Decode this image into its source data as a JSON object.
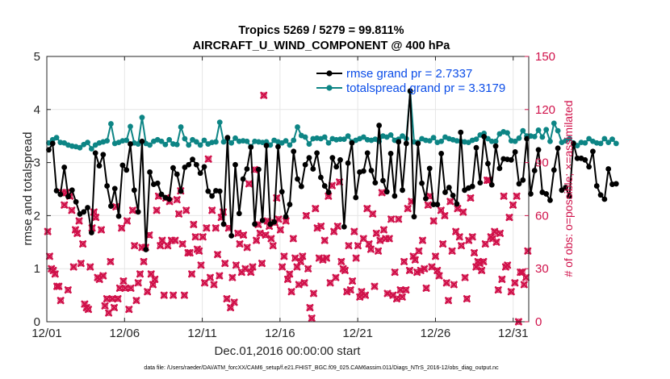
{
  "chart_data": {
    "type": "line",
    "title_line1": "Tropics 5269 / 5279 = 99.811%",
    "title_line2": "AIRCRAFT_U_WIND_COMPONENT @ 400 hPa",
    "xlabel": "Dec.01,2016 00:00:00 start",
    "ylabel_left": "rmse and totalspread",
    "ylabel_right": "# of obs: o=possible; ×=assimilated",
    "xlim": [
      0,
      31
    ],
    "ylim_left": [
      0,
      5
    ],
    "ylim_right": [
      0,
      150
    ],
    "x_ticks": [
      {
        "value": 0,
        "label": "12/01"
      },
      {
        "value": 5,
        "label": "12/06"
      },
      {
        "value": 10,
        "label": "12/11"
      },
      {
        "value": 15,
        "label": "12/16"
      },
      {
        "value": 20,
        "label": "12/21"
      },
      {
        "value": 25,
        "label": "12/26"
      },
      {
        "value": 30,
        "label": "12/31"
      }
    ],
    "y_ticks_left": [
      "0",
      "1",
      "2",
      "3",
      "4",
      "5"
    ],
    "y_ticks_right": [
      "0",
      "30",
      "60",
      "90",
      "120",
      "150"
    ],
    "legend": [
      {
        "name": "rmse grand pr = 2.7337",
        "color": "#000000"
      },
      {
        "name": "totalspread grand pr = 3.3179",
        "color": "#0d8585"
      }
    ],
    "footnote": "data file: /Users/raeder/DAI/ATM_forcXX/CAM6_setup/f.e21.FHIST_BGC.f09_025.CAM6assim.011/Diags_NTrS_2016-12/obs_diag_output.nc",
    "time_step_days": 0.25,
    "series": [
      {
        "name": "rmse",
        "color": "#000000",
        "axis": "left",
        "values": [
          3.24,
          3.36,
          2.47,
          2.4,
          2.91,
          2.36,
          2.48,
          2.26,
          2.03,
          2.07,
          2.15,
          1.68,
          3.18,
          2.94,
          3.15,
          2.56,
          2.18,
          2.51,
          1.99,
          2.95,
          2.86,
          3.35,
          2.48,
          2.07,
          3.4,
          1.36,
          2.82,
          2.59,
          2.61,
          2.4,
          2.34,
          2.31,
          2.9,
          2.78,
          2.46,
          2.91,
          2.96,
          3.06,
          2.96,
          2.8,
          2.92,
          2.46,
          2.37,
          2.47,
          2.46,
          1.84,
          3.47,
          1.62,
          2.96,
          2.04,
          2.69,
          2.88,
          3.29,
          1.84,
          2.87,
          1.91,
          3.32,
          1.84,
          1.88,
          3.3,
          2.45,
          1.98,
          2.21,
          3.21,
          2.69,
          2.55,
          2.96,
          3.09,
          2.88,
          3.18,
          2.72,
          2.56,
          2.44,
          3.09,
          2.92,
          3.05,
          1.79,
          2.99,
          3.37,
          2.34,
          2.82,
          2.84,
          3.18,
          2.85,
          2.62,
          3.7,
          2.66,
          2.45,
          3.17,
          2.37,
          3.39,
          2.48,
          3.36,
          4.35,
          1.98,
          3.36,
          2.61,
          2.32,
          2.89,
          2.21,
          2.21,
          3.17,
          2.44,
          2.53,
          2.38,
          2.22,
          3.57,
          2.48,
          2.52,
          2.55,
          3.28,
          2.62,
          3.49,
          2.98,
          2.58,
          3.31,
          2.89,
          3.07,
          3.06,
          3.05,
          3.2,
          2.6,
          2.67,
          3.45,
          2.41,
          2.85,
          3.24,
          2.44,
          2.41,
          2.29,
          2.86,
          3.27,
          2.48,
          2.53,
          2.37,
          3.36,
          3.08,
          3.08,
          3.05,
          2.92,
          3.21,
          2.56,
          2.39,
          2.31,
          2.88,
          2.59,
          2.6
        ]
      },
      {
        "name": "totalspread",
        "color": "#0d8585",
        "axis": "left",
        "values": [
          3.37,
          3.43,
          3.47,
          3.38,
          3.37,
          3.33,
          3.31,
          3.3,
          3.28,
          3.34,
          3.38,
          3.26,
          3.33,
          3.37,
          3.39,
          3.41,
          3.73,
          3.36,
          3.38,
          3.41,
          3.42,
          3.68,
          3.37,
          3.35,
          3.85,
          3.36,
          3.33,
          3.4,
          3.43,
          3.4,
          3.34,
          3.43,
          3.35,
          3.34,
          3.67,
          3.45,
          3.33,
          3.43,
          3.39,
          3.33,
          3.42,
          3.35,
          3.38,
          3.39,
          3.76,
          3.39,
          3.45,
          3.37,
          3.46,
          3.4,
          3.41,
          3.4,
          3.3,
          3.4,
          3.39,
          3.38,
          3.39,
          3.33,
          3.42,
          3.39,
          3.37,
          3.41,
          3.33,
          3.42,
          3.67,
          3.51,
          3.48,
          3.35,
          3.45,
          3.46,
          3.45,
          3.48,
          3.37,
          3.45,
          3.43,
          3.44,
          3.44,
          3.5,
          3.39,
          3.42,
          3.45,
          3.48,
          3.43,
          3.42,
          3.44,
          3.4,
          3.5,
          3.48,
          3.52,
          3.42,
          3.44,
          3.5,
          3.45,
          4.34,
          3.39,
          3.38,
          3.45,
          3.42,
          3.41,
          3.47,
          3.38,
          3.4,
          3.48,
          3.45,
          3.43,
          3.41,
          3.4,
          3.39,
          3.38,
          3.42,
          3.44,
          3.52,
          3.55,
          3.45,
          3.4,
          3.4,
          3.54,
          3.58,
          3.56,
          3.41,
          3.4,
          3.46,
          3.6,
          3.5,
          3.5,
          3.49,
          3.61,
          3.48,
          3.62,
          3.4,
          3.74,
          3.6,
          3.38,
          3.41,
          3.45,
          3.37,
          3.32,
          3.38,
          3.37,
          3.45,
          3.4,
          3.37,
          3.36,
          3.45,
          3.38,
          3.44,
          3.36
        ]
      },
      {
        "name": "obs_assimilated",
        "color": "#d0114a",
        "axis": "right",
        "marker": "x",
        "values": [
          51,
          37,
          30,
          29,
          27,
          20,
          20,
          12,
          73,
          66,
          73,
          18,
          71,
          63,
          31,
          52,
          50,
          57,
          33,
          44,
          10,
          8,
          7,
          31,
          53,
          62,
          59,
          25,
          24,
          52,
          26,
          9,
          13,
          5,
          34,
          13,
          8,
          65,
          13,
          19,
          53,
          23,
          19,
          57,
          7,
          19,
          63,
          43,
          12,
          22,
          27,
          42,
          34,
          42,
          17,
          49,
          27,
          21,
          24,
          63,
          71,
          43,
          46,
          15,
          70,
          43,
          68,
          46,
          15,
          46,
          69,
          61,
          74,
          44,
          15,
          63,
          39,
          39,
          27,
          55,
          48,
          41,
          40,
          32,
          48,
          22,
          53,
          92,
          25,
          63,
          21,
          53,
          38,
          26,
          59,
          62,
          33,
          13,
          53,
          8,
          25,
          11,
          32,
          50,
          44,
          28,
          49,
          30,
          42,
          78,
          28,
          31,
          86,
          46,
          55,
          50,
          33,
          128,
          49,
          57,
          54,
          47,
          43,
          56,
          70,
          58,
          52,
          31,
          37,
          57,
          24,
          27,
          17,
          47,
          36,
          31,
          21,
          34,
          37,
          22,
          60,
          30,
          8,
          2,
          16,
          64,
          53,
          36,
          54,
          35,
          46,
          36,
          71,
          22,
          77,
          51,
          25,
          54,
          79,
          34,
          30,
          29,
          17,
          43,
          18,
          23,
          51,
          36,
          43,
          14,
          17,
          47,
          15,
          64,
          44,
          41,
          61,
          20,
          50,
          40,
          46,
          73,
          52,
          47,
          16,
          47,
          58,
          15,
          28,
          13,
          58,
          18,
          14,
          34,
          18,
          64,
          29,
          68,
          37,
          35,
          28,
          40,
          29,
          46,
          30,
          19,
          66,
          71,
          31,
          57,
          37,
          29,
          26,
          63,
          44,
          60,
          22,
          12,
          68,
          40,
          21,
          51,
          64,
          48,
          43,
          62,
          25,
          13,
          46,
          70,
          48,
          39,
          31,
          34,
          33,
          29,
          34,
          44,
          80,
          80,
          48,
          47,
          51,
          45,
          18,
          50,
          24,
          71,
          31,
          32,
          59,
          17,
          66,
          22,
          71,
          0,
          28,
          28,
          21,
          25,
          40
        ]
      },
      {
        "name": "obs_possible",
        "color": "#d0114a",
        "axis": "right",
        "marker": "o",
        "values": [
          51,
          37,
          30,
          29,
          27,
          20,
          20,
          12,
          73,
          66,
          73,
          18,
          71,
          63,
          31,
          52,
          50,
          57,
          33,
          44,
          10,
          8,
          7,
          31,
          53,
          62,
          59,
          25,
          24,
          52,
          26,
          9,
          13,
          5,
          34,
          13,
          8,
          65,
          13,
          19,
          53,
          23,
          19,
          57,
          7,
          19,
          63,
          43,
          12,
          22,
          27,
          42,
          34,
          42,
          17,
          49,
          27,
          21,
          24,
          63,
          71,
          43,
          46,
          15,
          70,
          43,
          68,
          46,
          15,
          46,
          69,
          61,
          74,
          44,
          15,
          63,
          39,
          39,
          27,
          55,
          48,
          41,
          40,
          32,
          48,
          22,
          53,
          92,
          25,
          63,
          21,
          53,
          38,
          26,
          59,
          62,
          33,
          13,
          53,
          8,
          25,
          11,
          32,
          50,
          44,
          28,
          49,
          30,
          42,
          78,
          28,
          31,
          86,
          46,
          55,
          50,
          33,
          128,
          49,
          57,
          54,
          47,
          43,
          56,
          70,
          58,
          52,
          31,
          37,
          57,
          24,
          27,
          17,
          47,
          36,
          31,
          21,
          34,
          37,
          22,
          60,
          30,
          8,
          2,
          16,
          64,
          53,
          36,
          54,
          35,
          46,
          36,
          71,
          22,
          77,
          51,
          25,
          54,
          79,
          34,
          30,
          29,
          17,
          43,
          18,
          23,
          51,
          36,
          43,
          14,
          17,
          47,
          15,
          64,
          44,
          41,
          61,
          20,
          50,
          40,
          46,
          73,
          52,
          47,
          16,
          47,
          58,
          15,
          28,
          13,
          58,
          18,
          14,
          34,
          18,
          64,
          29,
          68,
          37,
          35,
          28,
          40,
          29,
          46,
          30,
          19,
          66,
          71,
          31,
          57,
          37,
          29,
          26,
          63,
          44,
          60,
          22,
          12,
          68,
          40,
          21,
          51,
          64,
          48,
          43,
          62,
          25,
          13,
          46,
          70,
          48,
          39,
          31,
          34,
          33,
          29,
          34,
          44,
          80,
          80,
          48,
          47,
          51,
          45,
          18,
          50,
          24,
          71,
          31,
          32,
          59,
          17,
          66,
          22,
          71,
          0,
          28,
          28,
          21,
          25,
          40
        ]
      }
    ]
  }
}
